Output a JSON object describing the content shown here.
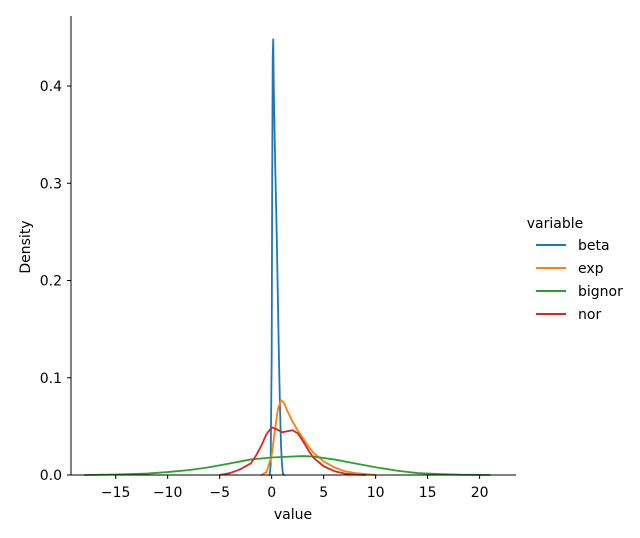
{
  "chart_data": {
    "type": "line",
    "title": "",
    "xlabel": "value",
    "ylabel": "Density",
    "xlim": [
      -19.3,
      23.5
    ],
    "ylim": [
      0,
      0.472
    ],
    "xticks": [
      -15,
      -10,
      -5,
      0,
      5,
      10,
      15,
      20
    ],
    "xtick_labels": [
      "−15",
      "−10",
      "−5",
      "0",
      "5",
      "10",
      "15",
      "20"
    ],
    "yticks": [
      0.0,
      0.1,
      0.2,
      0.3,
      0.4
    ],
    "ytick_labels": [
      "0.0",
      "0.1",
      "0.2",
      "0.3",
      "0.4"
    ],
    "grid": false,
    "legend": {
      "title": "variable",
      "placement": "right"
    },
    "series": [
      {
        "name": "beta",
        "color": "#1f77b4",
        "x": [
          -0.2,
          -0.1,
          0.0,
          0.05,
          0.1,
          0.15,
          0.2,
          0.3,
          0.4,
          0.5,
          0.6,
          0.7,
          0.8,
          0.9,
          1.0,
          1.05,
          1.1,
          1.2
        ],
        "y": [
          0.0,
          0.01,
          0.12,
          0.3,
          0.43,
          0.448,
          0.4,
          0.34,
          0.29,
          0.24,
          0.18,
          0.12,
          0.07,
          0.03,
          0.01,
          0.004,
          0.001,
          0.0
        ]
      },
      {
        "name": "exp",
        "color": "#ff7f0e",
        "x": [
          -1.0,
          -0.5,
          0.0,
          0.3,
          0.6,
          0.9,
          1.2,
          1.5,
          2.0,
          2.5,
          3.0,
          3.5,
          4.0,
          5.0,
          6.0,
          7.0,
          8.0,
          9.0,
          10.0
        ],
        "y": [
          0.0,
          0.003,
          0.02,
          0.045,
          0.068,
          0.077,
          0.074,
          0.066,
          0.055,
          0.046,
          0.038,
          0.03,
          0.023,
          0.014,
          0.008,
          0.004,
          0.002,
          0.001,
          0.0
        ]
      },
      {
        "name": "bignor",
        "color": "#2ca02c",
        "x": [
          -18,
          -15,
          -12,
          -10,
          -8,
          -6,
          -4,
          -2,
          0,
          2,
          3,
          4,
          6,
          8,
          10,
          12,
          14,
          16,
          18,
          21
        ],
        "y": [
          0.0,
          0.0005,
          0.0015,
          0.003,
          0.005,
          0.008,
          0.012,
          0.016,
          0.018,
          0.019,
          0.0195,
          0.019,
          0.016,
          0.012,
          0.008,
          0.0045,
          0.002,
          0.001,
          0.0003,
          0.0
        ]
      },
      {
        "name": "nor",
        "color": "#d62728",
        "x": [
          -5,
          -4,
          -3,
          -2,
          -1.5,
          -1,
          -0.5,
          0,
          0.5,
          1,
          1.5,
          2,
          2.5,
          3,
          3.5,
          4,
          5,
          6,
          7,
          8,
          9
        ],
        "y": [
          0.0,
          0.002,
          0.006,
          0.012,
          0.02,
          0.03,
          0.042,
          0.049,
          0.047,
          0.044,
          0.045,
          0.046,
          0.043,
          0.035,
          0.026,
          0.018,
          0.009,
          0.004,
          0.0015,
          0.0004,
          0.0
        ]
      }
    ]
  }
}
